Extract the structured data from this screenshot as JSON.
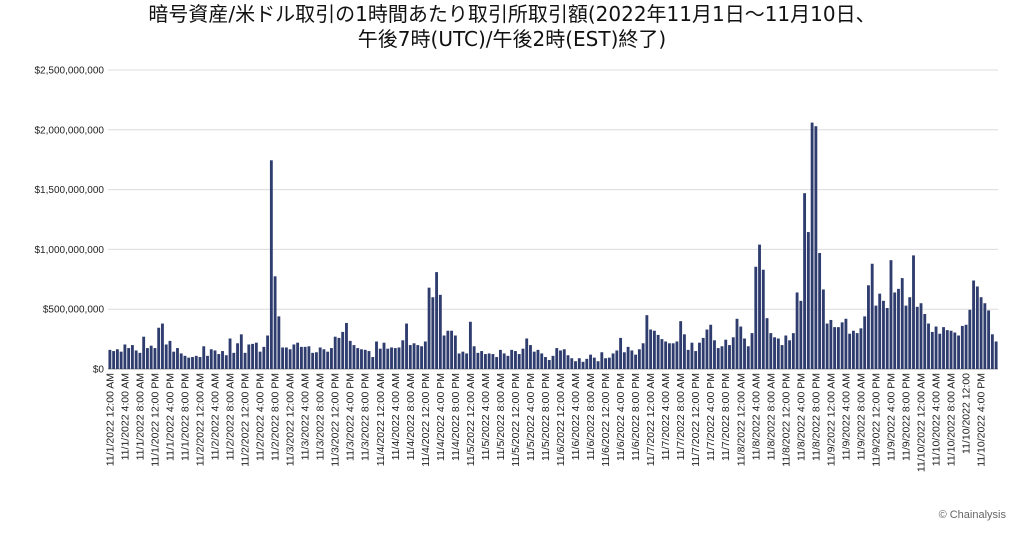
{
  "chart_data": {
    "type": "bar",
    "title": "暗号資産/米ドル取引の1時間あたり取引所取引額(2022年11月1日〜11月10日、",
    "subtitle": "午後7時(UTC)/午後2時(EST)終了)",
    "credit": "© Chainalysis",
    "bar_color": "#2e3c6e",
    "grid": true,
    "ylim": [
      0,
      2500000000
    ],
    "y_ticks": [
      "$0",
      "$500,000,000",
      "$1,000,000,000",
      "$1,500,000,000",
      "$2,000,000,000",
      "$2,500,000,000"
    ],
    "x_labels": [
      "11/1/2022 12:00 AM",
      "11/1/2022 4:00 AM",
      "11/1/2022 8:00 AM",
      "11/1/2022 12:00 PM",
      "11/1/2022 4:00 PM",
      "11/1/2022 8:00 PM",
      "11/2/2022 12:00 AM",
      "11/2/2022 4:00 AM",
      "11/2/2022 8:00 AM",
      "11/2/2022 12:00 PM",
      "11/2/2022 4:00 PM",
      "11/2/2022 8:00 PM",
      "11/3/2022 12:00 AM",
      "11/3/2022 4:00 AM",
      "11/3/2022 8:00 AM",
      "11/3/2022 12:00 PM",
      "11/3/2022 4:00 PM",
      "11/3/2022 8:00 PM",
      "11/4/2022 12:00 AM",
      "11/4/2022 4:00 AM",
      "11/4/2022 8:00 AM",
      "11/4/2022 12:00 PM",
      "11/4/2022 4:00 PM",
      "11/4/2022 8:00 PM",
      "11/5/2022 12:00 AM",
      "11/5/2022 4:00 AM",
      "11/5/2022 8:00 AM",
      "11/5/2022 12:00 PM",
      "11/5/2022 4:00 PM",
      "11/5/2022 8:00 PM",
      "11/6/2022 12:00 AM",
      "11/6/2022 4:00 AM",
      "11/6/2022 8:00 AM",
      "11/6/2022 12:00 PM",
      "11/6/2022 4:00 PM",
      "11/6/2022 8:00 PM",
      "11/7/2022 12:00 AM",
      "11/7/2022 4:00 AM",
      "11/7/2022 8:00 AM",
      "11/7/2022 12:00 PM",
      "11/7/2022 4:00 PM",
      "11/7/2022 8:00 PM",
      "11/8/2022 12:00 AM",
      "11/8/2022 4:00 AM",
      "11/8/2022 8:00 AM",
      "11/8/2022 12:00 PM",
      "11/8/2022 4:00 PM",
      "11/8/2022 8:00 PM",
      "11/9/2022 12:00 AM",
      "11/9/2022 4:00 AM",
      "11/9/2022 8:00 AM",
      "11/9/2022 12:00 PM",
      "11/9/2022 4:00 PM",
      "11/9/2022 8:00 PM",
      "11/10/2022 12:00 AM",
      "11/10/2022 4:00 AM",
      "11/10/2022 8:00 AM",
      "11/10/2022 12:00",
      "11/10/2022 4:00 PM"
    ],
    "values": [
      160000000,
      150000000,
      165000000,
      145000000,
      205000000,
      175000000,
      200000000,
      155000000,
      135000000,
      270000000,
      175000000,
      195000000,
      175000000,
      345000000,
      380000000,
      205000000,
      235000000,
      145000000,
      175000000,
      130000000,
      110000000,
      95000000,
      100000000,
      110000000,
      100000000,
      190000000,
      110000000,
      165000000,
      155000000,
      125000000,
      150000000,
      115000000,
      255000000,
      135000000,
      215000000,
      290000000,
      135000000,
      205000000,
      210000000,
      220000000,
      145000000,
      185000000,
      280000000,
      1745000000,
      775000000,
      440000000,
      180000000,
      180000000,
      165000000,
      205000000,
      220000000,
      185000000,
      185000000,
      190000000,
      135000000,
      140000000,
      180000000,
      165000000,
      145000000,
      175000000,
      270000000,
      260000000,
      310000000,
      385000000,
      235000000,
      200000000,
      175000000,
      165000000,
      160000000,
      150000000,
      100000000,
      230000000,
      170000000,
      220000000,
      170000000,
      180000000,
      175000000,
      180000000,
      240000000,
      380000000,
      200000000,
      215000000,
      200000000,
      190000000,
      230000000,
      680000000,
      600000000,
      810000000,
      620000000,
      280000000,
      320000000,
      320000000,
      280000000,
      130000000,
      145000000,
      130000000,
      395000000,
      190000000,
      135000000,
      150000000,
      125000000,
      130000000,
      125000000,
      100000000,
      160000000,
      130000000,
      110000000,
      160000000,
      150000000,
      125000000,
      170000000,
      255000000,
      200000000,
      145000000,
      160000000,
      130000000,
      100000000,
      75000000,
      110000000,
      175000000,
      155000000,
      165000000,
      115000000,
      90000000,
      65000000,
      90000000,
      60000000,
      85000000,
      120000000,
      95000000,
      65000000,
      140000000,
      90000000,
      95000000,
      130000000,
      155000000,
      260000000,
      140000000,
      185000000,
      155000000,
      120000000,
      165000000,
      215000000,
      450000000,
      330000000,
      320000000,
      285000000,
      250000000,
      230000000,
      215000000,
      215000000,
      230000000,
      400000000,
      290000000,
      160000000,
      220000000,
      150000000,
      220000000,
      260000000,
      330000000,
      370000000,
      240000000,
      175000000,
      190000000,
      245000000,
      200000000,
      265000000,
      420000000,
      355000000,
      255000000,
      190000000,
      300000000,
      855000000,
      1040000000,
      830000000,
      425000000,
      300000000,
      265000000,
      255000000,
      200000000,
      280000000,
      240000000,
      300000000,
      640000000,
      570000000,
      1470000000,
      1145000000,
      2060000000,
      2030000000,
      970000000,
      665000000,
      380000000,
      410000000,
      350000000,
      350000000,
      390000000,
      420000000,
      295000000,
      320000000,
      300000000,
      340000000,
      440000000,
      700000000,
      880000000,
      530000000,
      630000000,
      570000000,
      510000000,
      910000000,
      640000000,
      670000000,
      760000000,
      530000000,
      600000000,
      950000000,
      520000000,
      550000000,
      460000000,
      380000000,
      310000000,
      355000000,
      295000000,
      350000000,
      325000000,
      320000000,
      305000000,
      280000000,
      360000000,
      370000000,
      495000000,
      740000000,
      690000000,
      600000000,
      550000000,
      490000000,
      290000000,
      230000000
    ]
  }
}
